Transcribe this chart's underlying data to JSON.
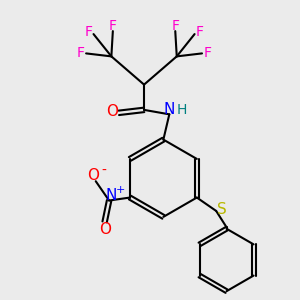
{
  "bg_color": "#ebebeb",
  "bond_color": "#000000",
  "bond_width": 1.5,
  "F_color": "#ff00cc",
  "O_color": "#ff0000",
  "N_color": "#0000ff",
  "S_color": "#b8b800",
  "NH_color": "#008080",
  "figsize": [
    3.0,
    3.0
  ],
  "dpi": 100,
  "xlim": [
    0,
    10
  ],
  "ylim": [
    0,
    10
  ]
}
